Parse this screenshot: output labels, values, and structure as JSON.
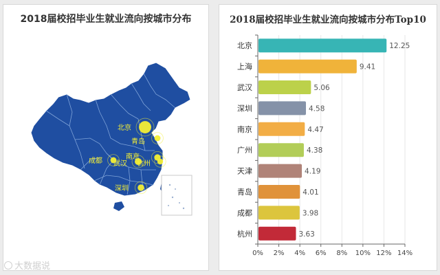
{
  "map_panel": {
    "title": "2018届校招毕业生就业流向按城市分布",
    "cities": [
      {
        "name": "北京",
        "value": 12.25
      },
      {
        "name": "青岛",
        "value": 4.01
      },
      {
        "name": "南京",
        "value": 4.47
      },
      {
        "name": "杭州",
        "value": 3.63
      },
      {
        "name": "武汉",
        "value": 5.06
      },
      {
        "name": "成都",
        "value": 3.98
      },
      {
        "name": "深圳",
        "value": 4.58
      }
    ],
    "colors": {
      "land": "#1f4ea1",
      "border": "#7fa3d8",
      "marker": "#f3ee35",
      "label": "#f3ee35"
    }
  },
  "chart_data": {
    "type": "bar",
    "orientation": "horizontal",
    "title": "2018届校招毕业生就业流向按城市分布Top10",
    "categories": [
      "北京",
      "上海",
      "武汉",
      "深圳",
      "南京",
      "广州",
      "天津",
      "青岛",
      "成都",
      "杭州"
    ],
    "values": [
      12.25,
      9.41,
      5.06,
      4.58,
      4.47,
      4.38,
      4.19,
      4.01,
      3.98,
      3.63
    ],
    "value_labels": [
      "12.25",
      "9.41",
      "5.06",
      "4.58",
      "4.47",
      "4.38",
      "4.19",
      "4.01",
      "3.98",
      "3.63"
    ],
    "bar_colors": [
      "#37b5b5",
      "#f0b33a",
      "#bcd14a",
      "#8592a8",
      "#f2ad45",
      "#b2cd58",
      "#b08378",
      "#e0923a",
      "#dcc53d",
      "#c22a38"
    ],
    "xlim": [
      0,
      14
    ],
    "xticks": [
      "0%",
      "2%",
      "4%",
      "6%",
      "8%",
      "10%",
      "12%",
      "14%"
    ],
    "grid": true,
    "legend": "none"
  },
  "watermark": "大数据说"
}
